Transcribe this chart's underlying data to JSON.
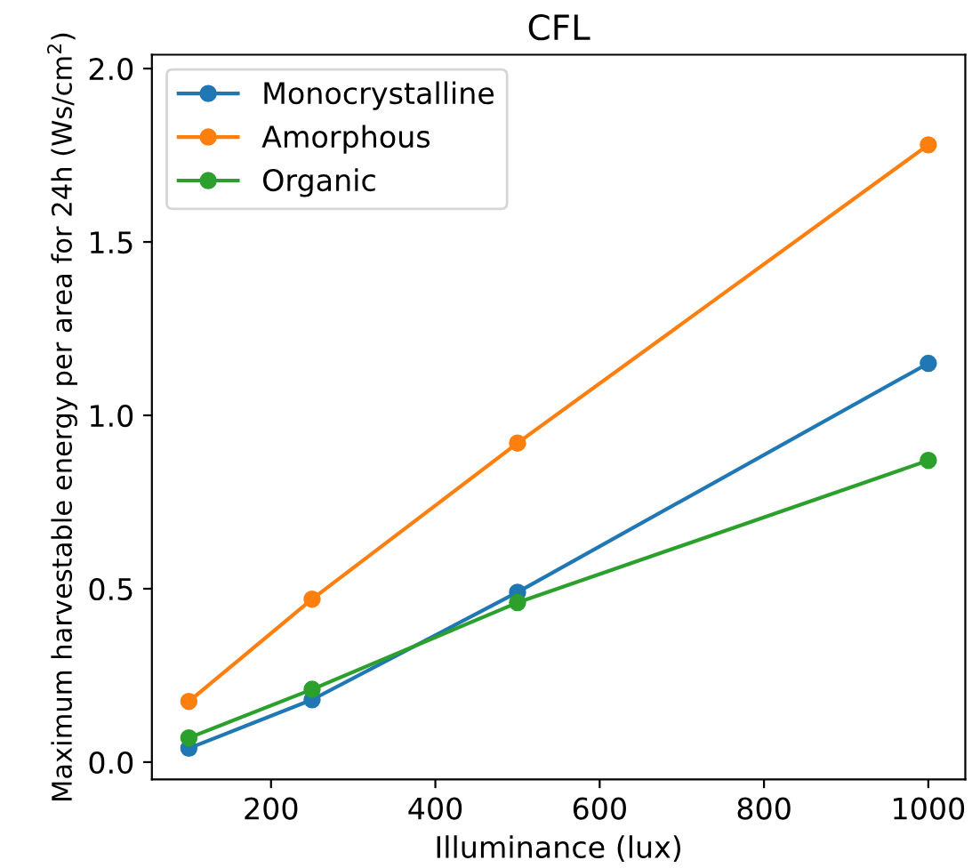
{
  "chart_data": {
    "type": "line",
    "title": "CFL",
    "xlabel": "Illuminance (lux)",
    "ylabel": "Maximum harvestable energy per area for 24h (Ws/cm$^{2}$)",
    "x": [
      100,
      250,
      500,
      1000
    ],
    "series": [
      {
        "name": "Monocrystalline",
        "color": "#1f77b4",
        "values": [
          0.04,
          0.18,
          0.49,
          1.15
        ]
      },
      {
        "name": "Amorphous",
        "color": "#ff7f0e",
        "values": [
          0.175,
          0.47,
          0.92,
          1.78
        ]
      },
      {
        "name": "Organic",
        "color": "#2ca02c",
        "values": [
          0.07,
          0.21,
          0.46,
          0.87
        ]
      }
    ],
    "xlim": [
      55,
      1045
    ],
    "ylim": [
      -0.05,
      2.04
    ],
    "xticks": [
      200,
      400,
      600,
      800,
      1000
    ],
    "yticks": [
      {
        "value": 0,
        "label": "0.0"
      },
      0.5,
      {
        "value": 1,
        "label": "1.0"
      },
      1.5,
      {
        "value": 2,
        "label": "2.0"
      }
    ],
    "grid": false,
    "legend": "top left",
    "marker": "circle",
    "line_style": "solid"
  }
}
